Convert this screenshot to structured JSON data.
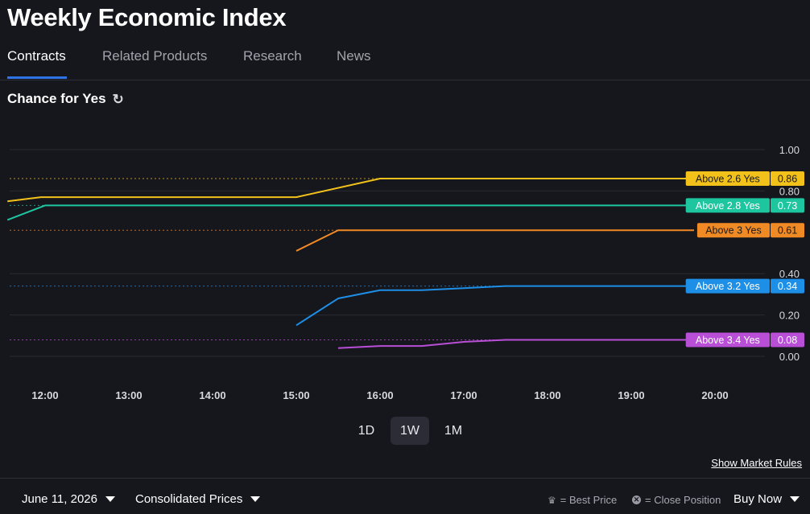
{
  "page": {
    "title": "Weekly Economic Index",
    "tabs": [
      {
        "label": "Contracts",
        "active": true
      },
      {
        "label": "Related Products",
        "active": false
      },
      {
        "label": "Research",
        "active": false
      },
      {
        "label": "News",
        "active": false
      }
    ],
    "subtitle": "Chance for Yes",
    "ranges": [
      {
        "label": "1D",
        "active": false
      },
      {
        "label": "1W",
        "active": true
      },
      {
        "label": "1M",
        "active": false
      }
    ],
    "market_rules": "Show Market Rules",
    "footer": {
      "date": "June 11, 2026",
      "prices": "Consolidated Prices",
      "best_price": "= Best Price",
      "close_position": "= Close Position",
      "buy_now": "Buy Now"
    }
  },
  "chart_data": {
    "type": "line",
    "ylim": [
      0,
      1
    ],
    "xlim": [
      11.55,
      20.85
    ],
    "y_ticks": [
      "1.00",
      "0.80",
      "0.40",
      "0.20",
      "0.00"
    ],
    "y_tick_values": [
      1.0,
      0.8,
      0.4,
      0.2,
      0.0
    ],
    "x_ticks": [
      "12:00",
      "13:00",
      "14:00",
      "15:00",
      "16:00",
      "17:00",
      "18:00",
      "19:00",
      "20:00"
    ],
    "x_tick_values": [
      12,
      13,
      14,
      15,
      16,
      17,
      18,
      19,
      20
    ],
    "grid": true,
    "series": [
      {
        "name": "Above 2.6 Yes",
        "last": "0.86",
        "color": "#f2c21b",
        "points": [
          [
            11.55,
            0.75
          ],
          [
            11.95,
            0.77
          ],
          [
            15.0,
            0.77
          ],
          [
            16.0,
            0.86
          ],
          [
            20.85,
            0.86
          ]
        ]
      },
      {
        "name": "Above 2.8 Yes",
        "last": "0.73",
        "color": "#1ec6a0",
        "points": [
          [
            11.55,
            0.66
          ],
          [
            12.0,
            0.73
          ],
          [
            20.85,
            0.73
          ]
        ]
      },
      {
        "name": "Above 3 Yes",
        "last": "0.61",
        "color": "#f08a24",
        "points": [
          [
            15.0,
            0.51
          ],
          [
            15.5,
            0.61
          ],
          [
            20.85,
            0.61
          ]
        ]
      },
      {
        "name": "Above 3.2 Yes",
        "last": "0.34",
        "color": "#1e8fe6",
        "points": [
          [
            15.0,
            0.15
          ],
          [
            15.5,
            0.28
          ],
          [
            16.0,
            0.32
          ],
          [
            16.5,
            0.32
          ],
          [
            17.0,
            0.33
          ],
          [
            17.5,
            0.34
          ],
          [
            20.85,
            0.34
          ]
        ]
      },
      {
        "name": "Above 3.4 Yes",
        "last": "0.08",
        "color": "#b84fd6",
        "points": [
          [
            15.5,
            0.04
          ],
          [
            16.0,
            0.05
          ],
          [
            16.5,
            0.05
          ],
          [
            17.0,
            0.07
          ],
          [
            17.5,
            0.08
          ],
          [
            20.85,
            0.08
          ]
        ]
      }
    ]
  }
}
